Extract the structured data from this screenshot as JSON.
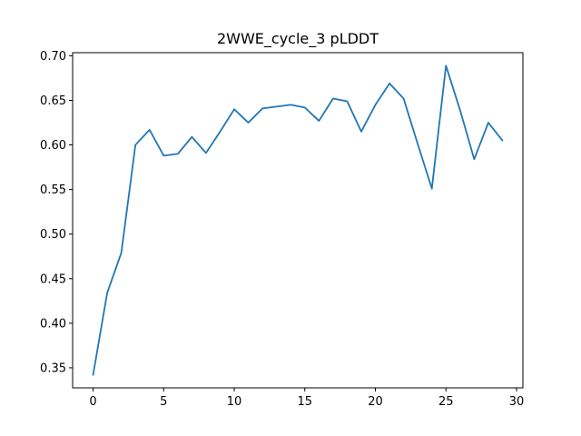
{
  "chart_data": {
    "type": "line",
    "title": "2WWE_cycle_3 pLDDT",
    "xlabel": "",
    "ylabel": "",
    "xlim": [
      -1.45,
      30.45
    ],
    "ylim": [
      0.3275,
      0.7035
    ],
    "xticks": [
      0,
      5,
      10,
      15,
      20,
      25,
      30
    ],
    "yticks": [
      0.35,
      0.4,
      0.45,
      0.5,
      0.55,
      0.6,
      0.65,
      0.7
    ],
    "xtick_labels": [
      "0",
      "5",
      "10",
      "15",
      "20",
      "25",
      "30"
    ],
    "ytick_labels": [
      "0.35",
      "0.40",
      "0.45",
      "0.50",
      "0.55",
      "0.60",
      "0.65",
      "0.70"
    ],
    "grid": false,
    "series": [
      {
        "color": "#1f77b4",
        "x": [
          0,
          1,
          2,
          3,
          4,
          5,
          6,
          7,
          8,
          9,
          10,
          11,
          12,
          13,
          14,
          15,
          16,
          17,
          18,
          19,
          20,
          21,
          22,
          23,
          24,
          25,
          26,
          27,
          28,
          29
        ],
        "y": [
          0.342,
          0.434,
          0.479,
          0.6,
          0.617,
          0.588,
          0.59,
          0.609,
          0.591,
          0.615,
          0.64,
          0.625,
          0.641,
          0.643,
          0.645,
          0.642,
          0.627,
          0.652,
          0.649,
          0.615,
          0.645,
          0.669,
          0.652,
          0.601,
          0.551,
          0.689,
          0.639,
          0.584,
          0.625,
          0.605
        ]
      }
    ]
  }
}
